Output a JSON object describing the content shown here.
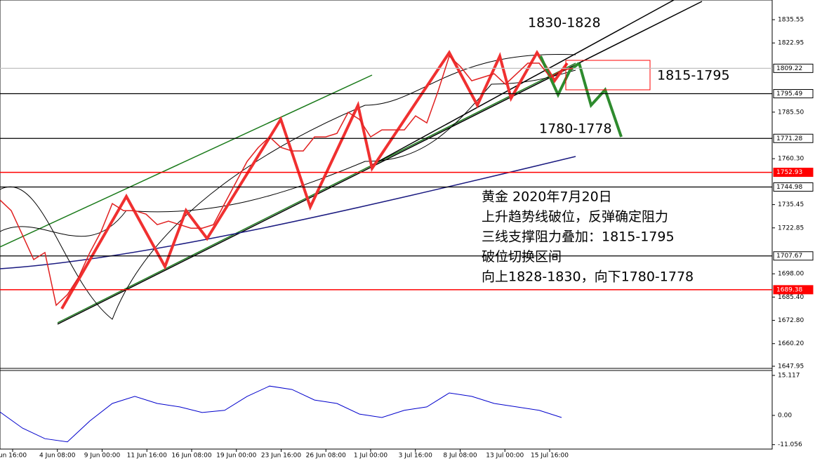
{
  "chart_data": {
    "type": "line",
    "annotations": [
      "1830-1828",
      "1815-1795",
      "1780-1778"
    ],
    "notes": [
      "黄金  2020年7月20日",
      "上升趋势线破位，反弹确定阻力",
      "三线支撑阻力叠加：1815-1795",
      "破位切换区间",
      "向上1828-1830，向下1780-1778"
    ],
    "x_labels": [
      "un 16:00",
      "4 Jun 08:00",
      "9 Jun 00:00",
      "11 Jun 16:00",
      "16 Jun 08:00",
      "19 Jun 00:00",
      "23 Jun 16:00",
      "26 Jun 08:00",
      "1 Jul 00:00",
      "3 Jul 16:00",
      "8 Jul 08:00",
      "13 Jul 00:00",
      "15 Jul 16:00"
    ],
    "series": [
      {
        "color": "#e02020",
        "values": [
          1737.9,
          1732.2,
          1719.0,
          1705.7,
          1709.5,
          1681.0,
          1686.7,
          1696.2,
          1709.5,
          1720.9,
          1736.0,
          1732.2,
          1732.2,
          1730.3,
          1724.6,
          1726.5,
          1724.6,
          1722.7,
          1722.7,
          1724.6,
          1736.0,
          1747.4,
          1758.8,
          1766.4,
          1772.1,
          1766.4,
          1764.5,
          1764.5,
          1772.1,
          1772.1,
          1774.0,
          1785.4,
          1781.6,
          1772.1,
          1775.9,
          1775.9,
          1775.9,
          1783.5,
          1779.7,
          1796.8,
          1815.8,
          1810.1,
          1802.5,
          1804.4,
          1806.3,
          1800.6,
          1806.3,
          1812.0,
          1812.0,
          1804.4,
          1808.2,
          1809.2
        ]
      },
      {
        "color": "#0000cc",
        "axis": "y2",
        "values": [
          1.3,
          -4.8,
          -8.8,
          -10,
          -2.1,
          4.5,
          7.2,
          4.5,
          3.2,
          1.1,
          1.9,
          7.2,
          11.1,
          9.8,
          5.8,
          4.5,
          0.5,
          -0.8,
          1.9,
          3.2,
          8.5,
          7.2,
          4.5,
          3.2,
          1.9,
          -0.8
        ]
      }
    ],
    "ylim": [
      1646.8,
      1846.2
    ],
    "yticks": [
      1835.55,
      1822.95,
      {
        "value": 1785.5,
        "label": "1785.50"
      },
      {
        "value": 1760.3,
        "label": "1760.30"
      },
      1735.45,
      1722.85,
      {
        "value": 1698,
        "label": "1698.00"
      },
      {
        "value": 1685.4,
        "label": "1685.40"
      },
      {
        "value": 1672.8,
        "label": "1672.80"
      },
      {
        "value": 1660.2,
        "label": "1660.20"
      },
      1647.95
    ],
    "levels": [
      {
        "value": 1809.22,
        "color": "#c0c0c0"
      },
      {
        "value": 1795.49,
        "color": "#000000"
      },
      {
        "value": 1771.28,
        "color": "#000000"
      },
      {
        "value": 1752.93,
        "color": "#ff0000"
      },
      {
        "value": 1744.98,
        "color": "#000000"
      },
      {
        "value": 1707.67,
        "color": "#000000"
      },
      {
        "value": 1689.38,
        "color": "#ff0000"
      }
    ],
    "y2lim": [
      -12.73,
      17.24
    ],
    "y2ticks": [
      15.117,
      {
        "value": 0,
        "label": "0.00"
      },
      -11.056
    ]
  }
}
